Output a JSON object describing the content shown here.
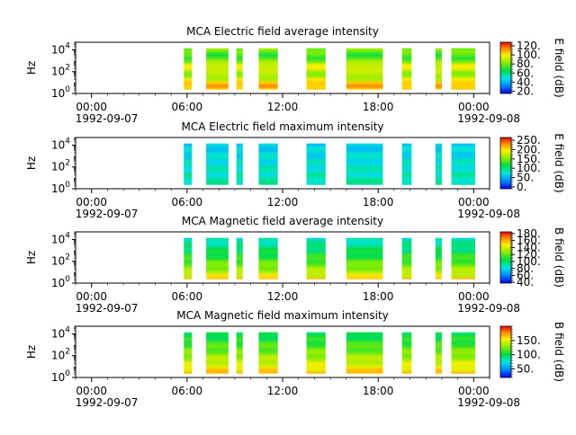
{
  "figure": {
    "xticks": [
      "00:00",
      "06:00",
      "12:00",
      "18:00",
      "00:00"
    ],
    "xdate_left": "1992-09-07",
    "xdate_right": "1992-09-08",
    "ylabel": "Hz"
  },
  "chart_data": [
    {
      "type": "heatmap",
      "title": "MCA  Electric field average intensity",
      "ylabel": "Hz",
      "yticks": [
        "10^0",
        "10^2",
        "10^4"
      ],
      "ylim_log10": [
        0,
        4.7
      ],
      "colorbar_label": "E field (dB)",
      "colorbar_ticks": [
        20,
        40,
        60,
        80,
        100,
        120
      ],
      "colorbar_tick_labels": [
        "20.",
        "40.",
        "60.",
        "80.",
        "100.",
        "120."
      ],
      "colorbar_range": [
        15,
        128
      ],
      "style": "avg-e",
      "xlim_hours": [
        -1,
        25
      ],
      "data_intervals_hours": [
        [
          5.8,
          6.3
        ],
        [
          7.2,
          8.6
        ],
        [
          9.1,
          9.5
        ],
        [
          10.5,
          11.7
        ],
        [
          13.5,
          14.7
        ],
        [
          16.0,
          18.3
        ],
        [
          19.5,
          20.1
        ],
        [
          21.6,
          22.0
        ],
        [
          22.6,
          24.1
        ]
      ]
    },
    {
      "type": "heatmap",
      "title": "MCA  Electric field maximum intensity",
      "ylabel": "Hz",
      "yticks": [
        "10^0",
        "10^2",
        "10^4"
      ],
      "ylim_log10": [
        0,
        4.7
      ],
      "colorbar_label": "E field (dB)",
      "colorbar_ticks": [
        0,
        50,
        100,
        150,
        200,
        250
      ],
      "colorbar_tick_labels": [
        "0.",
        "50.",
        "100.",
        "150.",
        "200.",
        "250."
      ],
      "colorbar_range": [
        -10,
        265
      ],
      "style": "max-e",
      "xlim_hours": [
        -1,
        25
      ],
      "data_intervals_hours": [
        [
          5.8,
          6.3
        ],
        [
          7.2,
          8.6
        ],
        [
          9.1,
          9.5
        ],
        [
          10.5,
          11.7
        ],
        [
          13.5,
          14.7
        ],
        [
          16.0,
          18.3
        ],
        [
          19.5,
          20.1
        ],
        [
          21.6,
          22.0
        ],
        [
          22.6,
          24.1
        ]
      ]
    },
    {
      "type": "heatmap",
      "title": "MCA  Magnetic field average intensity",
      "ylabel": "Hz",
      "yticks": [
        "10^0",
        "10^2",
        "10^4"
      ],
      "ylim_log10": [
        0,
        4.7
      ],
      "colorbar_label": "B field (dB)",
      "colorbar_ticks": [
        40,
        60,
        80,
        100,
        120,
        140,
        160,
        180
      ],
      "colorbar_tick_labels": [
        "40.",
        "60.",
        "80.",
        "100.",
        "120.",
        "140.",
        "160.",
        "180."
      ],
      "colorbar_range": [
        38,
        185
      ],
      "style": "avg-b",
      "xlim_hours": [
        -1,
        25
      ],
      "data_intervals_hours": [
        [
          5.8,
          6.3
        ],
        [
          7.2,
          8.6
        ],
        [
          9.1,
          9.5
        ],
        [
          10.5,
          11.7
        ],
        [
          13.5,
          14.7
        ],
        [
          16.0,
          18.3
        ],
        [
          19.5,
          20.1
        ],
        [
          21.6,
          22.0
        ],
        [
          22.6,
          24.1
        ]
      ]
    },
    {
      "type": "heatmap",
      "title": "MCA  Magnetic field maximum intensity",
      "ylabel": "Hz",
      "yticks": [
        "10^0",
        "10^2",
        "10^4"
      ],
      "ylim_log10": [
        0,
        4.7
      ],
      "colorbar_label": "B field (dB)",
      "colorbar_ticks": [
        50,
        100,
        150
      ],
      "colorbar_tick_labels": [
        "50.",
        "100.",
        "150."
      ],
      "colorbar_range": [
        20,
        200
      ],
      "style": "max-b",
      "xlim_hours": [
        -1,
        25
      ],
      "data_intervals_hours": [
        [
          5.8,
          6.3
        ],
        [
          7.2,
          8.6
        ],
        [
          9.1,
          9.5
        ],
        [
          10.5,
          11.7
        ],
        [
          13.5,
          14.7
        ],
        [
          16.0,
          18.3
        ],
        [
          19.5,
          20.1
        ],
        [
          21.6,
          22.0
        ],
        [
          22.6,
          24.1
        ]
      ]
    }
  ]
}
